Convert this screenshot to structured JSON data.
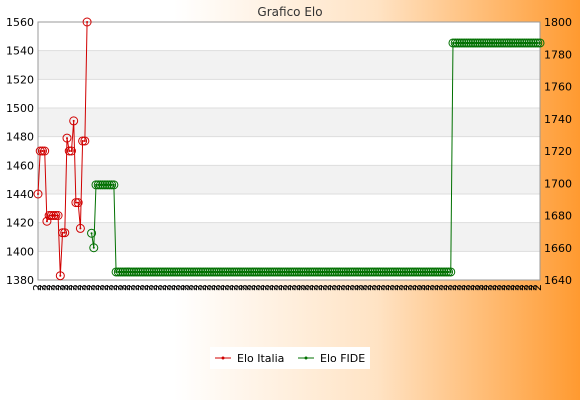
{
  "chart_data": {
    "type": "line",
    "title": "Grafico Elo",
    "left_axis": {
      "min": 1380,
      "max": 1560,
      "ticks": [
        1380,
        1400,
        1420,
        1440,
        1460,
        1480,
        1500,
        1520,
        1540,
        1560
      ]
    },
    "right_axis": {
      "min": 1640,
      "max": 1800,
      "ticks": [
        1640,
        1660,
        1680,
        1700,
        1720,
        1740,
        1760,
        1780,
        1800
      ]
    },
    "x_tick_repeat_label": "2",
    "grid": "horizontal",
    "legend_position": "bottom",
    "series": [
      {
        "name": "Elo Italia",
        "axis": "left",
        "color": "#d00000",
        "start_index": 0,
        "values": [
          1440,
          1470,
          1470,
          1470,
          1421,
          1425,
          1425,
          1425,
          1425,
          1425,
          1383,
          1413,
          1413,
          1479,
          1470,
          1470,
          1491,
          1434,
          1434,
          1416,
          1477,
          1477,
          1560
        ]
      },
      {
        "name": "Elo FIDE",
        "axis": "right",
        "color": "#007000",
        "start_index": 24,
        "values": [
          1669,
          1660,
          1699,
          1699,
          1699,
          1699,
          1699,
          1699,
          1699,
          1699,
          1699,
          1645,
          1645,
          1645,
          1645,
          1645,
          1645,
          1645,
          1645,
          1645,
          1645,
          1645,
          1645,
          1645,
          1645,
          1645,
          1645,
          1645,
          1645,
          1645,
          1645,
          1645,
          1645,
          1645,
          1645,
          1645,
          1645,
          1645,
          1645,
          1645,
          1645,
          1645,
          1645,
          1645,
          1645,
          1645,
          1645,
          1645,
          1645,
          1645,
          1645,
          1645,
          1645,
          1645,
          1645,
          1645,
          1645,
          1645,
          1645,
          1645,
          1645,
          1645,
          1645,
          1645,
          1645,
          1645,
          1645,
          1645,
          1645,
          1645,
          1645,
          1645,
          1645,
          1645,
          1645,
          1645,
          1645,
          1645,
          1645,
          1645,
          1645,
          1645,
          1645,
          1645,
          1645,
          1645,
          1645,
          1645,
          1645,
          1645,
          1645,
          1645,
          1645,
          1645,
          1645,
          1645,
          1645,
          1645,
          1645,
          1645,
          1645,
          1645,
          1645,
          1645,
          1645,
          1645,
          1645,
          1645,
          1645,
          1645,
          1645,
          1645,
          1645,
          1645,
          1645,
          1645,
          1645,
          1645,
          1645,
          1645,
          1645,
          1645,
          1645,
          1645,
          1645,
          1645,
          1645,
          1645,
          1645,
          1645,
          1645,
          1645,
          1645,
          1645,
          1645,
          1645,
          1645,
          1645,
          1645,
          1645,
          1645,
          1645,
          1645,
          1645,
          1645,
          1645,
          1645,
          1645,
          1645,
          1645,
          1645,
          1645,
          1645,
          1645,
          1645,
          1645,
          1645,
          1645,
          1645,
          1645,
          1645,
          1645,
          1787,
          1787,
          1787,
          1787,
          1787,
          1787,
          1787,
          1787,
          1787,
          1787,
          1787,
          1787,
          1787,
          1787,
          1787,
          1787,
          1787,
          1787,
          1787,
          1787,
          1787,
          1787,
          1787,
          1787,
          1787,
          1787,
          1787,
          1787,
          1787,
          1787,
          1787,
          1787,
          1787,
          1787,
          1787,
          1787,
          1787,
          1787,
          1787,
          1787
        ]
      }
    ]
  }
}
